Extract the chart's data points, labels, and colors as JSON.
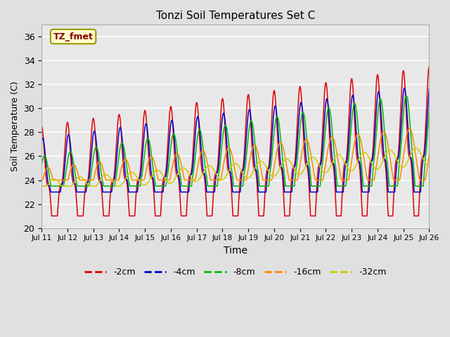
{
  "title": "Tonzi Soil Temperatures Set C",
  "xlabel": "Time",
  "ylabel": "Soil Temperature (C)",
  "ylim": [
    20,
    37
  ],
  "yticks": [
    20,
    22,
    24,
    26,
    28,
    30,
    32,
    34,
    36
  ],
  "xlim_start": 11,
  "xlim_end": 26,
  "xtick_days": [
    11,
    12,
    13,
    14,
    15,
    16,
    17,
    18,
    19,
    20,
    21,
    22,
    23,
    24,
    25,
    26
  ],
  "background_color": "#e0e0e0",
  "plot_bg_color": "#e8e8e8",
  "legend_label": "TZ_fmet",
  "legend_box_facecolor": "#ffffcc",
  "legend_box_edgecolor": "#999900",
  "series_colors": {
    "-2cm": "#dd0000",
    "-4cm": "#0000cc",
    "-8cm": "#00bb00",
    "-16cm": "#ff8800",
    "-32cm": "#cccc00"
  },
  "n_days": 15,
  "start_day": 11,
  "samples_per_day": 240
}
